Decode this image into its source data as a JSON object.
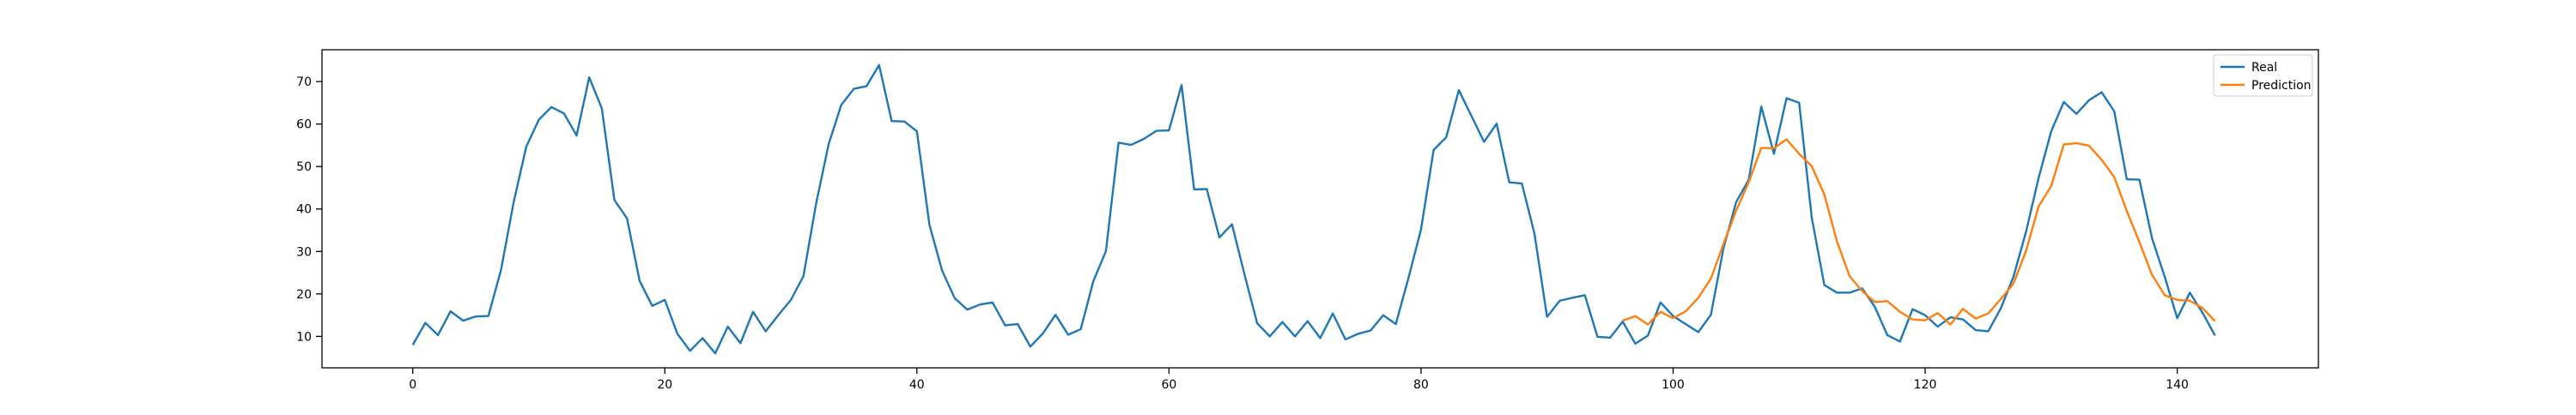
{
  "chart_data": {
    "type": "line",
    "title": "",
    "xlabel": "",
    "ylabel": "",
    "xlim": [
      -7.2,
      151.2
    ],
    "ylim": [
      2.6,
      77.5
    ],
    "xticks": [
      0,
      20,
      40,
      60,
      80,
      100,
      120,
      140
    ],
    "yticks": [
      10,
      20,
      30,
      40,
      50,
      60,
      70
    ],
    "grid": false,
    "legend_position": "top-right",
    "series": [
      {
        "name": "Real",
        "color": "#1f77b4",
        "x_start": 0,
        "values": [
          8.0,
          13.2,
          10.3,
          15.9,
          13.7,
          14.7,
          14.8,
          25.6,
          41.5,
          54.6,
          61.0,
          64.0,
          62.5,
          57.3,
          71.0,
          63.7,
          42.1,
          37.8,
          23.1,
          17.2,
          18.6,
          10.6,
          6.6,
          9.6,
          6.0,
          12.3,
          8.4,
          15.8,
          11.2,
          15.0,
          18.6,
          24.2,
          41.2,
          55.3,
          64.5,
          68.3,
          68.9,
          73.9,
          60.7,
          60.6,
          58.3,
          36.2,
          25.5,
          19.0,
          16.3,
          17.5,
          18.0,
          12.6,
          12.9,
          7.6,
          10.7,
          15.1,
          10.4,
          11.7,
          23.0,
          30.1,
          55.6,
          55.1,
          56.5,
          58.4,
          58.5,
          69.2,
          44.6,
          44.7,
          33.3,
          36.4,
          24.5,
          13.1,
          10.0,
          13.4,
          10.0,
          13.6,
          9.6,
          15.4,
          9.3,
          10.6,
          11.4,
          15.0,
          12.9,
          23.7,
          35.2,
          53.9,
          56.9,
          68.0,
          61.9,
          55.8,
          60.1,
          46.3,
          46.0,
          34.2,
          14.6,
          18.4,
          19.1,
          19.7,
          9.9,
          9.7,
          13.5,
          8.3,
          10.2,
          18.0,
          14.8,
          12.9,
          11.0,
          15.1,
          30.8,
          41.6,
          46.9,
          64.1,
          53.0,
          66.1,
          65.0,
          38.0,
          22.1,
          20.3,
          20.3,
          21.3,
          17.0,
          10.3,
          8.8,
          16.4,
          15.0,
          12.3,
          14.5,
          14.0,
          11.5,
          11.2,
          16.6,
          24.0,
          34.6,
          47.3,
          58.3,
          65.2,
          62.4,
          65.6,
          67.5,
          63.0,
          47.0,
          46.9,
          33.1,
          24.1,
          14.3,
          20.3,
          15.6,
          10.2
        ]
      },
      {
        "name": "Prediction",
        "color": "#ff7f0e",
        "x_start": 96,
        "values": [
          13.7,
          14.8,
          12.8,
          15.8,
          14.3,
          15.9,
          19.1,
          23.6,
          31.8,
          39.6,
          46.3,
          54.4,
          54.3,
          56.4,
          53.0,
          50.1,
          43.4,
          32.4,
          24.2,
          20.7,
          18.1,
          18.3,
          15.8,
          14.0,
          13.8,
          15.5,
          12.8,
          16.5,
          14.2,
          15.4,
          18.8,
          22.4,
          30.1,
          40.6,
          45.4,
          55.2,
          55.5,
          54.9,
          51.6,
          47.5,
          39.5,
          32.2,
          24.5,
          19.7,
          18.6,
          18.4,
          16.7,
          13.6
        ]
      }
    ]
  }
}
